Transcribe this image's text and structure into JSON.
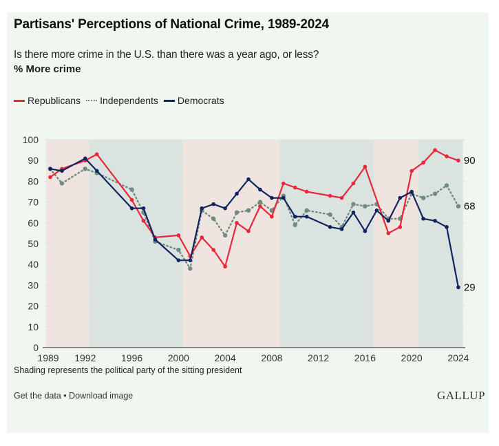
{
  "header": {
    "title": "Partisans' Perceptions of National Crime, 1989-2024",
    "subtitle": "Is there more crime in the U.S. than there was a year ago, or less?",
    "measure": "% More crime"
  },
  "legend": [
    {
      "label": "Republicans",
      "color": "#e8283a",
      "style": "solid"
    },
    {
      "label": "Independents",
      "color": "#6e8b80",
      "style": "dotted"
    },
    {
      "label": "Democrats",
      "color": "#0f2461",
      "style": "solid"
    }
  ],
  "footer": {
    "note": "Shading represents the political party of the sitting president",
    "get_data": "Get the data",
    "separator": " • ",
    "download": "Download image",
    "logo": "GALLUP"
  },
  "chart_data": {
    "type": "line",
    "title": "Partisans' Perceptions of National Crime, 1989-2024",
    "subtitle": "Is there more crime in the U.S. than there was a year ago, or less?",
    "ylabel": "% More crime",
    "xlabel": "",
    "ylim": [
      0,
      100
    ],
    "yticks": [
      0,
      10,
      20,
      30,
      40,
      50,
      60,
      70,
      80,
      90,
      100
    ],
    "xticks": [
      1989,
      1992,
      1996,
      2000,
      2004,
      2008,
      2012,
      2016,
      2020,
      2024
    ],
    "xlim": [
      1988.65,
      2024.4
    ],
    "grid": true,
    "legend_position": "top-left",
    "shading": [
      {
        "party": "Republican",
        "from": 1988.65,
        "to": 1992.31,
        "color": "#efe4df"
      },
      {
        "party": "Democratic",
        "from": 1992.31,
        "to": 2000.38,
        "color": "#dbe3e1"
      },
      {
        "party": "Republican",
        "from": 2000.38,
        "to": 2008.68,
        "color": "#efe4df"
      },
      {
        "party": "Democratic",
        "from": 2008.68,
        "to": 2016.75,
        "color": "#dbe3e1"
      },
      {
        "party": "Republican",
        "from": 2016.75,
        "to": 2020.58,
        "color": "#efe4df"
      },
      {
        "party": "Democratic",
        "from": 2020.58,
        "to": 2024.4,
        "color": "#dbe3e1"
      }
    ],
    "series": [
      {
        "name": "Republicans",
        "color": "#e8283a",
        "style": "solid",
        "end_label": "90",
        "points": [
          [
            1989,
            82
          ],
          [
            1990,
            86
          ],
          [
            1992,
            90
          ],
          [
            1993,
            93
          ],
          [
            1996,
            71
          ],
          [
            1997,
            61
          ],
          [
            1998,
            53
          ],
          [
            2000,
            54
          ],
          [
            2001,
            44
          ],
          [
            2002,
            53
          ],
          [
            2003,
            47
          ],
          [
            2004,
            39
          ],
          [
            2005,
            60
          ],
          [
            2006,
            56
          ],
          [
            2007,
            68
          ],
          [
            2008,
            63
          ],
          [
            2009,
            79
          ],
          [
            2010,
            77
          ],
          [
            2011,
            75
          ],
          [
            2013,
            73
          ],
          [
            2014,
            72
          ],
          [
            2015,
            79
          ],
          [
            2016,
            87
          ],
          [
            2018,
            55
          ],
          [
            2019,
            58
          ],
          [
            2020,
            85
          ],
          [
            2021,
            89
          ],
          [
            2022,
            95
          ],
          [
            2023,
            92
          ],
          [
            2024,
            90
          ]
        ]
      },
      {
        "name": "Independents",
        "color": "#6e8b80",
        "style": "dotted",
        "end_label": "68",
        "points": [
          [
            1989,
            86
          ],
          [
            1990,
            79
          ],
          [
            1992,
            86
          ],
          [
            1993,
            84
          ],
          [
            1996,
            76
          ],
          [
            1997,
            65
          ],
          [
            1998,
            51
          ],
          [
            2000,
            47
          ],
          [
            2001,
            38
          ],
          [
            2002,
            66
          ],
          [
            2003,
            62
          ],
          [
            2004,
            54
          ],
          [
            2005,
            65
          ],
          [
            2006,
            66
          ],
          [
            2007,
            70
          ],
          [
            2008,
            66
          ],
          [
            2009,
            73
          ],
          [
            2010,
            59
          ],
          [
            2011,
            66
          ],
          [
            2013,
            64
          ],
          [
            2014,
            58
          ],
          [
            2015,
            69
          ],
          [
            2016,
            68
          ],
          [
            2017,
            69
          ],
          [
            2018,
            62
          ],
          [
            2019,
            62
          ],
          [
            2020,
            74
          ],
          [
            2021,
            72
          ],
          [
            2022,
            74
          ],
          [
            2023,
            78
          ],
          [
            2024,
            68
          ]
        ]
      },
      {
        "name": "Democrats",
        "color": "#0f2461",
        "style": "solid",
        "end_label": "29",
        "points": [
          [
            1989,
            86
          ],
          [
            1990,
            85
          ],
          [
            1992,
            91
          ],
          [
            1993,
            85
          ],
          [
            1996,
            67
          ],
          [
            1997,
            67
          ],
          [
            1998,
            52
          ],
          [
            2000,
            42
          ],
          [
            2001,
            42
          ],
          [
            2002,
            67
          ],
          [
            2003,
            69
          ],
          [
            2004,
            67
          ],
          [
            2005,
            74
          ],
          [
            2006,
            81
          ],
          [
            2007,
            76
          ],
          [
            2008,
            72
          ],
          [
            2009,
            72
          ],
          [
            2010,
            63
          ],
          [
            2011,
            63
          ],
          [
            2013,
            58
          ],
          [
            2014,
            57
          ],
          [
            2015,
            65
          ],
          [
            2016,
            56
          ],
          [
            2017,
            66
          ],
          [
            2018,
            61
          ],
          [
            2019,
            72
          ],
          [
            2020,
            75
          ],
          [
            2021,
            62
          ],
          [
            2022,
            61
          ],
          [
            2023,
            58
          ],
          [
            2024,
            29
          ]
        ]
      }
    ]
  }
}
